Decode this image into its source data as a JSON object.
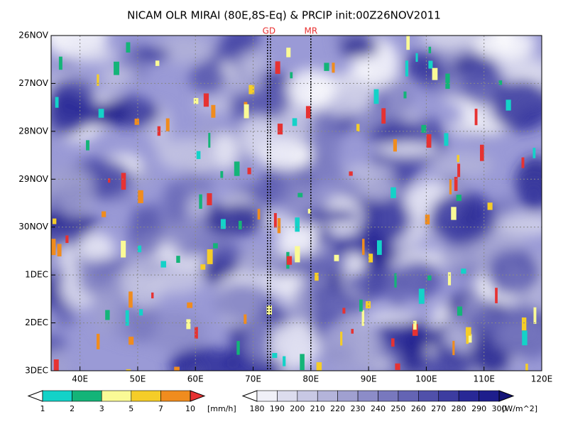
{
  "chart_data": {
    "type": "hovmoller",
    "title": "NICAM OLR MIRAI (80E,8S-Eq) & PRCIP init:00Z26NOV2011",
    "xlim": [
      35,
      120
    ],
    "xticks": [
      {
        "value": 40,
        "label": "40E"
      },
      {
        "value": 50,
        "label": "50E"
      },
      {
        "value": 60,
        "label": "60E"
      },
      {
        "value": 70,
        "label": "70E"
      },
      {
        "value": 80,
        "label": "80E"
      },
      {
        "value": 90,
        "label": "90E"
      },
      {
        "value": 100,
        "label": "100E"
      },
      {
        "value": 110,
        "label": "110E"
      },
      {
        "value": 120,
        "label": "120E"
      }
    ],
    "y_categories": [
      "26NOV",
      "27NOV",
      "28NOV",
      "29NOV",
      "30NOV",
      "1DEC",
      "2DEC",
      "3DEC"
    ],
    "grid": true,
    "markers": [
      {
        "label": "GD",
        "x": [
          72.5,
          73
        ]
      },
      {
        "label": "MR",
        "x": [
          80
        ]
      }
    ],
    "marker_color": "#e83030",
    "colorbars": [
      {
        "levels": [
          1,
          2,
          3,
          5,
          7,
          10
        ],
        "unit": "[mm/h]",
        "colors": [
          "#ffffff",
          "#14d2c8",
          "#14b478",
          "#fafa96",
          "#f5cd28",
          "#f08c1e",
          "#e63232"
        ]
      },
      {
        "levels": [
          180,
          190,
          200,
          210,
          220,
          230,
          240,
          250,
          260,
          270,
          280,
          290,
          300
        ],
        "unit": "[W/m^2]",
        "colors": [
          "#ffffff",
          "#f0f0f8",
          "#dcdcee",
          "#c8c8e4",
          "#b4b4da",
          "#a0a0d0",
          "#8c8cc8",
          "#7878be",
          "#6464b4",
          "#5050aa",
          "#3c3ca0",
          "#282896",
          "#1e1e8c",
          "#141478"
        ]
      }
    ]
  }
}
